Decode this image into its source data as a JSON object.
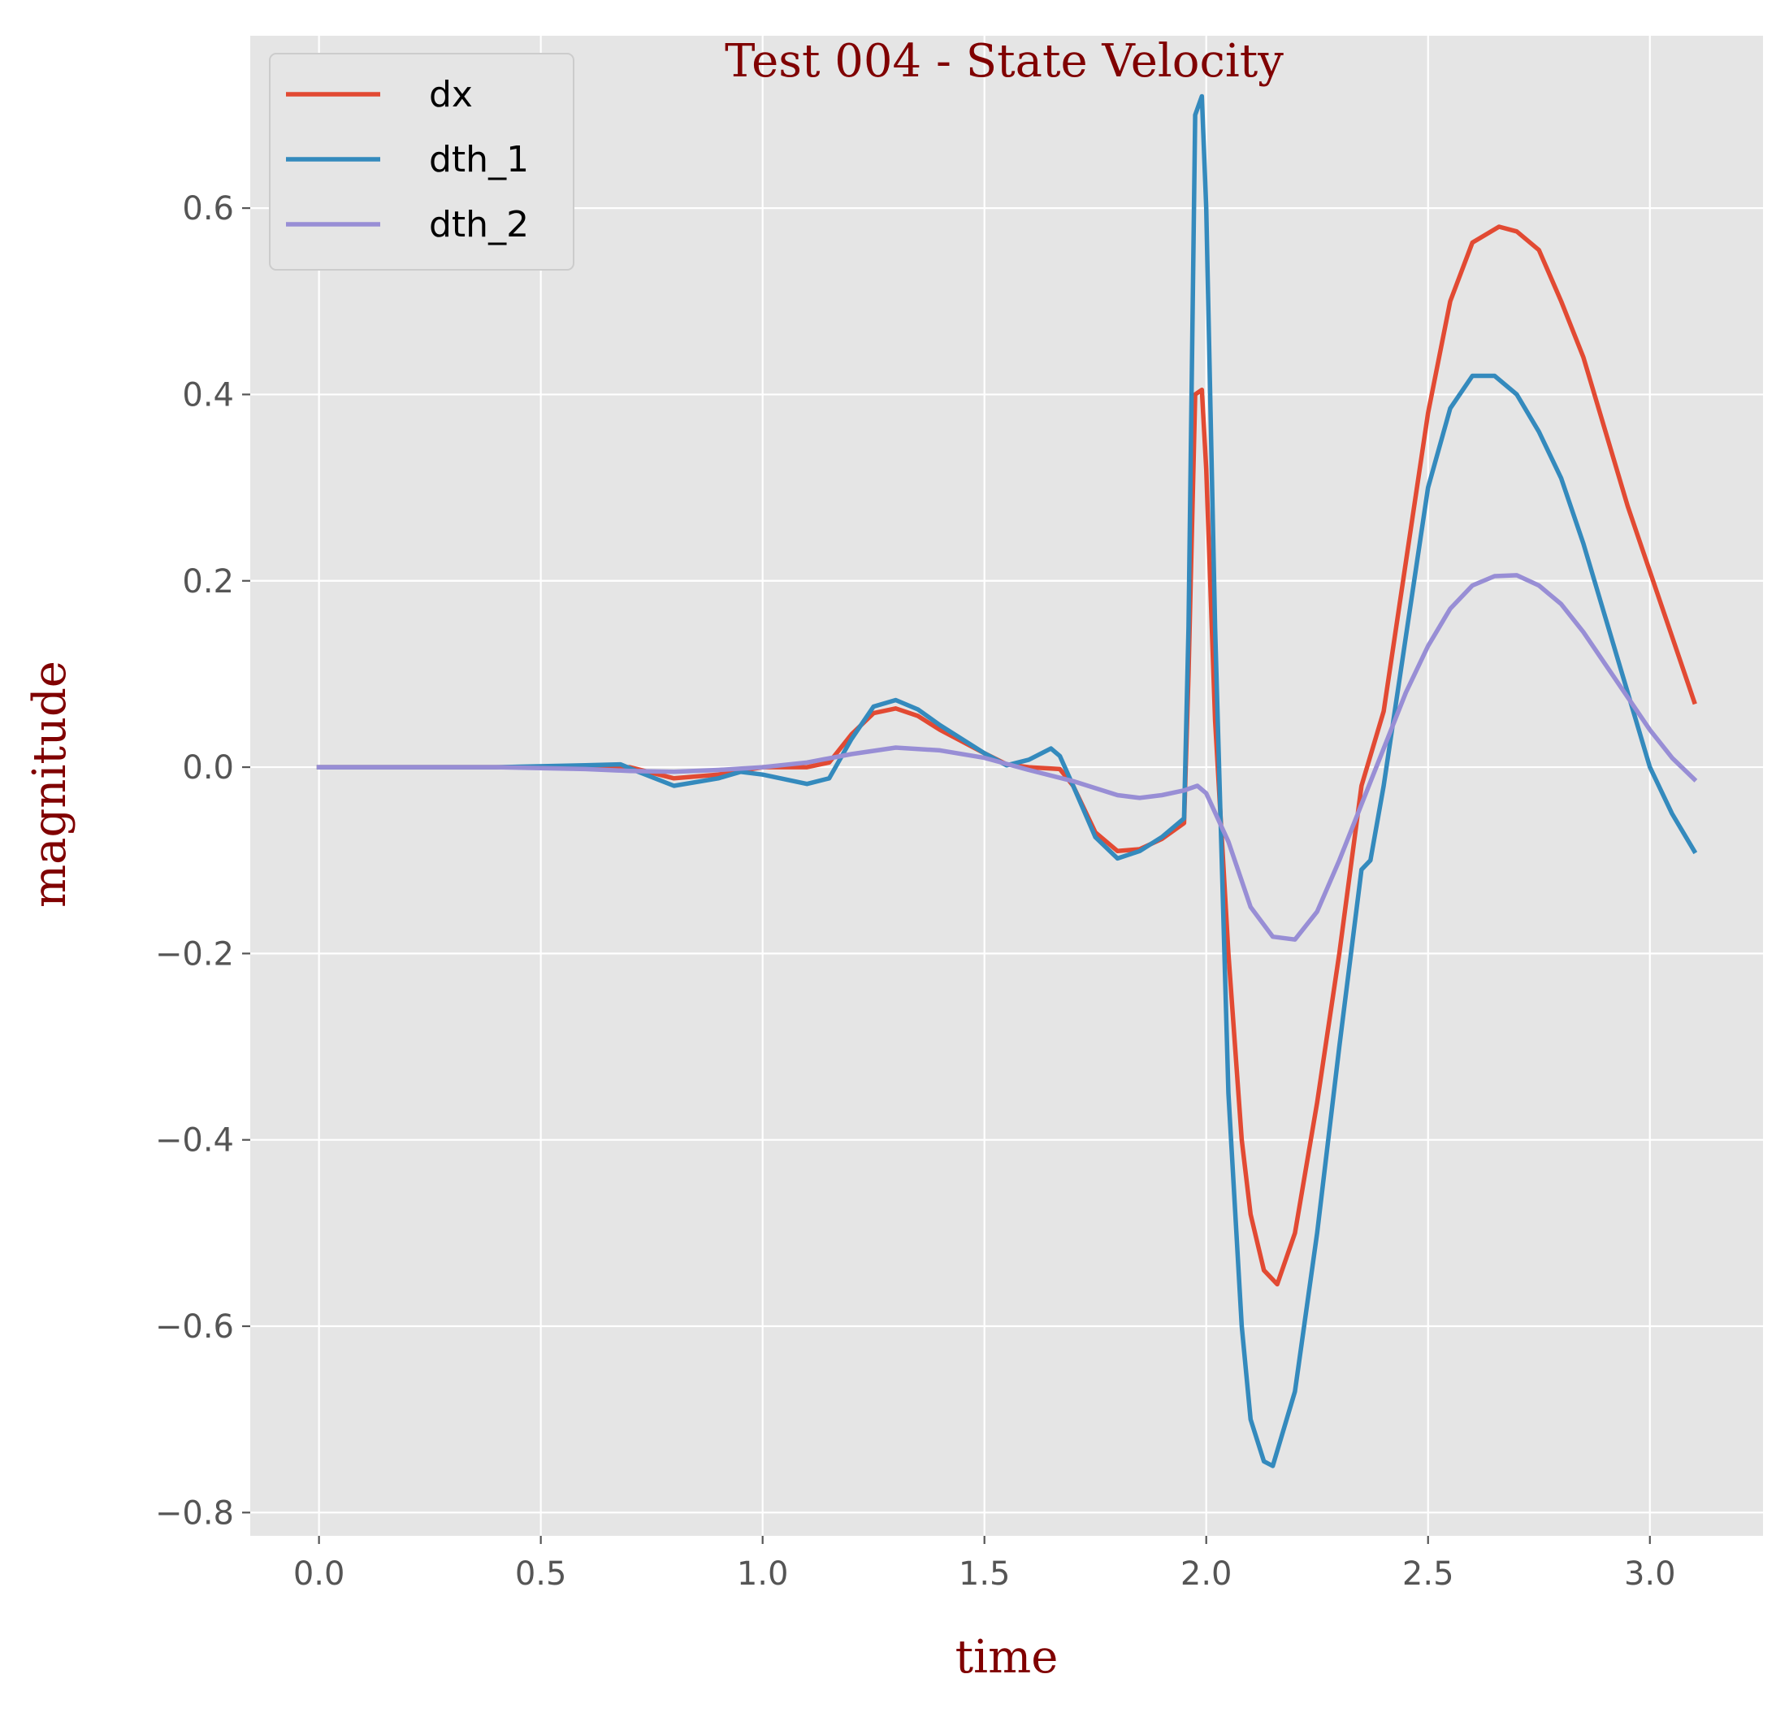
{
  "chart_data": {
    "type": "line",
    "title": "Test 004 - State Velocity",
    "xlabel": "time",
    "ylabel": "magnitude",
    "xlim": [
      -0.155,
      3.255
    ],
    "ylim": [
      -0.825,
      0.785
    ],
    "xticks": [
      0.0,
      0.5,
      1.0,
      1.5,
      2.0,
      2.5,
      3.0
    ],
    "xtick_labels": [
      "0.0",
      "0.5",
      "1.0",
      "1.5",
      "2.0",
      "2.5",
      "3.0"
    ],
    "yticks": [
      -0.8,
      -0.6,
      -0.4,
      -0.2,
      0.0,
      0.2,
      0.4,
      0.6
    ],
    "ytick_labels": [
      "−0.8",
      "−0.6",
      "−0.4",
      "−0.2",
      "0.0",
      "0.2",
      "0.4",
      "0.6"
    ],
    "grid": true,
    "legend_position": "top-left",
    "background": "#e5e5e5",
    "title_color": "#800000",
    "series": [
      {
        "name": "dx",
        "color": "#e24a33",
        "points": [
          [
            0.0,
            0.0
          ],
          [
            0.2,
            0.0
          ],
          [
            0.4,
            0.0
          ],
          [
            0.6,
            0.0
          ],
          [
            0.7,
            0.0
          ],
          [
            0.8,
            -0.012
          ],
          [
            0.9,
            -0.008
          ],
          [
            1.0,
            0.0
          ],
          [
            1.1,
            0.0
          ],
          [
            1.15,
            0.005
          ],
          [
            1.2,
            0.035
          ],
          [
            1.25,
            0.058
          ],
          [
            1.3,
            0.063
          ],
          [
            1.35,
            0.055
          ],
          [
            1.4,
            0.04
          ],
          [
            1.5,
            0.015
          ],
          [
            1.55,
            0.003
          ],
          [
            1.6,
            0.0
          ],
          [
            1.67,
            -0.002
          ],
          [
            1.7,
            -0.02
          ],
          [
            1.75,
            -0.07
          ],
          [
            1.8,
            -0.09
          ],
          [
            1.85,
            -0.088
          ],
          [
            1.9,
            -0.077
          ],
          [
            1.95,
            -0.06
          ],
          [
            1.96,
            0.1
          ],
          [
            1.975,
            0.4
          ],
          [
            1.99,
            0.405
          ],
          [
            2.0,
            0.32
          ],
          [
            2.02,
            0.05
          ],
          [
            2.05,
            -0.2
          ],
          [
            2.08,
            -0.4
          ],
          [
            2.1,
            -0.48
          ],
          [
            2.13,
            -0.54
          ],
          [
            2.16,
            -0.555
          ],
          [
            2.2,
            -0.5
          ],
          [
            2.25,
            -0.36
          ],
          [
            2.3,
            -0.2
          ],
          [
            2.35,
            -0.02
          ],
          [
            2.4,
            0.06
          ],
          [
            2.45,
            0.22
          ],
          [
            2.5,
            0.38
          ],
          [
            2.55,
            0.5
          ],
          [
            2.6,
            0.563
          ],
          [
            2.66,
            0.58
          ],
          [
            2.7,
            0.575
          ],
          [
            2.75,
            0.555
          ],
          [
            2.8,
            0.5
          ],
          [
            2.85,
            0.44
          ],
          [
            2.9,
            0.36
          ],
          [
            2.95,
            0.28
          ],
          [
            3.0,
            0.21
          ],
          [
            3.05,
            0.14
          ],
          [
            3.1,
            0.07
          ]
        ]
      },
      {
        "name": "dth_1",
        "color": "#348abd",
        "points": [
          [
            0.0,
            0.0
          ],
          [
            0.2,
            0.0
          ],
          [
            0.4,
            0.0
          ],
          [
            0.6,
            0.002
          ],
          [
            0.68,
            0.003
          ],
          [
            0.72,
            -0.005
          ],
          [
            0.8,
            -0.02
          ],
          [
            0.9,
            -0.012
          ],
          [
            0.95,
            -0.005
          ],
          [
            1.0,
            -0.008
          ],
          [
            1.1,
            -0.018
          ],
          [
            1.15,
            -0.012
          ],
          [
            1.2,
            0.03
          ],
          [
            1.25,
            0.065
          ],
          [
            1.3,
            0.072
          ],
          [
            1.35,
            0.062
          ],
          [
            1.4,
            0.045
          ],
          [
            1.5,
            0.015
          ],
          [
            1.55,
            0.002
          ],
          [
            1.6,
            0.008
          ],
          [
            1.65,
            0.02
          ],
          [
            1.67,
            0.012
          ],
          [
            1.7,
            -0.02
          ],
          [
            1.75,
            -0.075
          ],
          [
            1.8,
            -0.098
          ],
          [
            1.85,
            -0.09
          ],
          [
            1.9,
            -0.075
          ],
          [
            1.95,
            -0.055
          ],
          [
            1.96,
            0.15
          ],
          [
            1.975,
            0.7
          ],
          [
            1.99,
            0.72
          ],
          [
            2.0,
            0.6
          ],
          [
            2.02,
            0.15
          ],
          [
            2.05,
            -0.35
          ],
          [
            2.08,
            -0.6
          ],
          [
            2.1,
            -0.7
          ],
          [
            2.13,
            -0.745
          ],
          [
            2.15,
            -0.75
          ],
          [
            2.2,
            -0.67
          ],
          [
            2.25,
            -0.5
          ],
          [
            2.3,
            -0.3
          ],
          [
            2.35,
            -0.11
          ],
          [
            2.37,
            -0.1
          ],
          [
            2.4,
            -0.02
          ],
          [
            2.45,
            0.14
          ],
          [
            2.5,
            0.3
          ],
          [
            2.55,
            0.385
          ],
          [
            2.6,
            0.42
          ],
          [
            2.65,
            0.42
          ],
          [
            2.7,
            0.4
          ],
          [
            2.75,
            0.36
          ],
          [
            2.8,
            0.31
          ],
          [
            2.85,
            0.24
          ],
          [
            2.9,
            0.16
          ],
          [
            2.95,
            0.08
          ],
          [
            3.0,
            0.0
          ],
          [
            3.05,
            -0.05
          ],
          [
            3.1,
            -0.09
          ]
        ]
      },
      {
        "name": "dth_2",
        "color": "#988ed5",
        "points": [
          [
            0.0,
            0.0
          ],
          [
            0.2,
            0.0
          ],
          [
            0.4,
            0.0
          ],
          [
            0.6,
            -0.002
          ],
          [
            0.7,
            -0.004
          ],
          [
            0.8,
            -0.005
          ],
          [
            0.9,
            -0.003
          ],
          [
            1.0,
            0.0
          ],
          [
            1.1,
            0.005
          ],
          [
            1.2,
            0.014
          ],
          [
            1.3,
            0.021
          ],
          [
            1.4,
            0.018
          ],
          [
            1.5,
            0.01
          ],
          [
            1.6,
            -0.003
          ],
          [
            1.7,
            -0.015
          ],
          [
            1.8,
            -0.03
          ],
          [
            1.85,
            -0.033
          ],
          [
            1.9,
            -0.03
          ],
          [
            1.95,
            -0.025
          ],
          [
            1.98,
            -0.02
          ],
          [
            2.0,
            -0.028
          ],
          [
            2.05,
            -0.08
          ],
          [
            2.1,
            -0.15
          ],
          [
            2.15,
            -0.182
          ],
          [
            2.2,
            -0.185
          ],
          [
            2.25,
            -0.155
          ],
          [
            2.3,
            -0.1
          ],
          [
            2.35,
            -0.04
          ],
          [
            2.4,
            0.02
          ],
          [
            2.45,
            0.08
          ],
          [
            2.5,
            0.13
          ],
          [
            2.55,
            0.17
          ],
          [
            2.6,
            0.195
          ],
          [
            2.65,
            0.205
          ],
          [
            2.7,
            0.206
          ],
          [
            2.75,
            0.195
          ],
          [
            2.8,
            0.175
          ],
          [
            2.85,
            0.145
          ],
          [
            2.9,
            0.11
          ],
          [
            2.95,
            0.075
          ],
          [
            3.0,
            0.04
          ],
          [
            3.05,
            0.01
          ],
          [
            3.1,
            -0.013
          ]
        ]
      }
    ]
  }
}
